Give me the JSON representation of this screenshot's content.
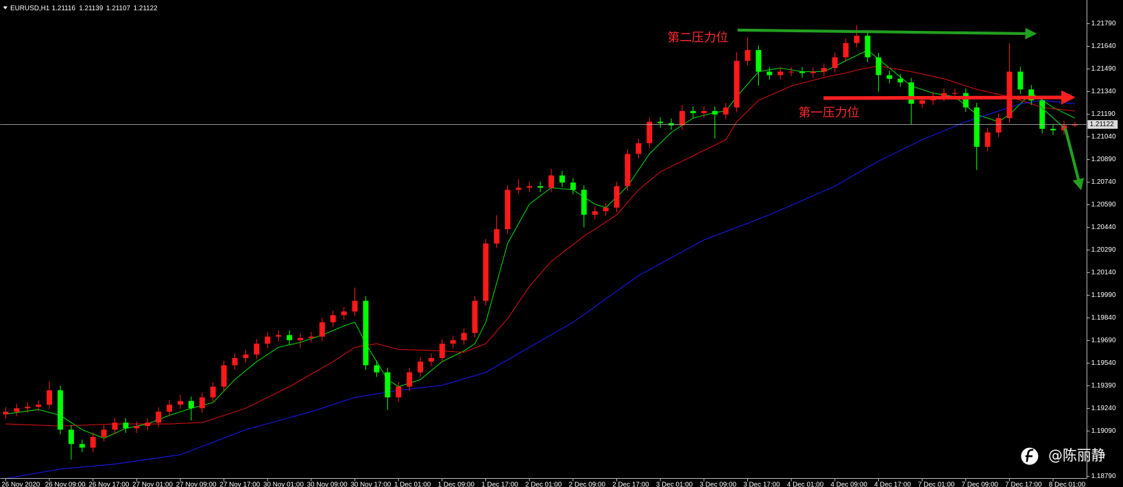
{
  "chart_data": {
    "type": "candlestick",
    "symbol": "EURUSD,H1",
    "header_values": [
      1.21116,
      1.21139,
      1.21107,
      1.21122
    ],
    "current_price": 1.21122,
    "up_color": "#ff1a1a",
    "down_color": "#00ff00",
    "open": [
      1.192,
      1.19218,
      1.19241,
      1.19251,
      1.19265,
      1.1936,
      1.19099,
      1.19004,
      1.1898,
      1.19051,
      1.19099,
      1.19146,
      1.19108,
      1.19123,
      1.19146,
      1.19218,
      1.19265,
      1.19289,
      1.19241,
      1.19313,
      1.19384,
      1.19526,
      1.19574,
      1.19597,
      1.19669,
      1.19716,
      1.19726,
      1.19692,
      1.19707,
      1.19716,
      1.19811,
      1.19858,
      1.19882,
      1.19953,
      1.19526,
      1.19479,
      1.19313,
      1.19384,
      1.19479,
      1.1955,
      1.19574,
      1.19669,
      1.19692,
      1.1974,
      1.19953,
      1.20333,
      1.20428,
      1.20689,
      1.20703,
      1.20713,
      1.20703,
      1.20784,
      1.20737,
      1.20689,
      1.20523,
      1.20547,
      1.20571,
      1.20713,
      1.20927,
      1.20998,
      1.2114,
      1.21131,
      1.21116,
      1.21211,
      1.21197,
      1.21211,
      1.21188,
      1.21235,
      1.21544,
      1.21615,
      1.21472,
      1.21449,
      1.21472,
      1.21472,
      1.21463,
      1.21472,
      1.21496,
      1.21567,
      1.21662,
      1.2171,
      1.21567,
      1.21449,
      1.21425,
      1.21401,
      1.21259,
      1.21282,
      1.21306,
      1.2133,
      1.2133,
      1.21235,
      1.20974,
      1.21069,
      1.21164,
      1.21472,
      1.21354,
      1.21282,
      1.21093,
      1.21083,
      1.21116
    ],
    "high": [
      1.19248,
      1.19271,
      1.19281,
      1.19295,
      1.1942,
      1.1939,
      1.19129,
      1.19034,
      1.19081,
      1.19129,
      1.19176,
      1.19176,
      1.19153,
      1.19176,
      1.19248,
      1.19295,
      1.1933,
      1.19319,
      1.19343,
      1.19414,
      1.19556,
      1.19604,
      1.19627,
      1.19699,
      1.19746,
      1.19756,
      1.19756,
      1.19737,
      1.19746,
      1.19841,
      1.19888,
      1.19912,
      1.2004,
      1.19983,
      1.19556,
      1.19509,
      1.19414,
      1.19509,
      1.1958,
      1.19604,
      1.19699,
      1.19722,
      1.1977,
      1.19983,
      1.20363,
      1.2052,
      1.20719,
      1.2076,
      1.20743,
      1.20743,
      1.2083,
      1.20814,
      1.20767,
      1.20719,
      1.20577,
      1.20601,
      1.20743,
      1.20957,
      1.21028,
      1.2117,
      1.2117,
      1.21161,
      1.2125,
      1.21241,
      1.21241,
      1.21241,
      1.21265,
      1.216,
      1.217,
      1.21645,
      1.21502,
      1.21502,
      1.21502,
      1.21502,
      1.21502,
      1.21526,
      1.21597,
      1.21692,
      1.2178,
      1.2174,
      1.21597,
      1.21479,
      1.21455,
      1.21431,
      1.21312,
      1.21336,
      1.2136,
      1.2136,
      1.2136,
      1.21265,
      1.21099,
      1.21194,
      1.2166,
      1.21502,
      1.21384,
      1.21312,
      1.21123,
      1.21146,
      1.21139
    ],
    "low": [
      1.1917,
      1.19188,
      1.19211,
      1.19221,
      1.19235,
      1.19069,
      1.189,
      1.1895,
      1.1895,
      1.19021,
      1.19069,
      1.19078,
      1.19078,
      1.19093,
      1.19116,
      1.19188,
      1.19235,
      1.1916,
      1.19211,
      1.19283,
      1.19354,
      1.19496,
      1.19544,
      1.19567,
      1.19639,
      1.19686,
      1.19662,
      1.1964,
      1.19677,
      1.19686,
      1.19781,
      1.19828,
      1.19852,
      1.19496,
      1.19449,
      1.1923,
      1.19283,
      1.19354,
      1.19449,
      1.1952,
      1.19544,
      1.19639,
      1.19662,
      1.1971,
      1.19923,
      1.20303,
      1.20398,
      1.20659,
      1.20673,
      1.20673,
      1.20673,
      1.20707,
      1.20659,
      1.2044,
      1.20493,
      1.20517,
      1.20541,
      1.20683,
      1.20897,
      1.20968,
      1.21101,
      1.21086,
      1.21086,
      1.21167,
      1.21167,
      1.2103,
      1.21158,
      1.21205,
      1.21514,
      1.2138,
      1.21419,
      1.21419,
      1.21442,
      1.21433,
      1.21433,
      1.21442,
      1.21466,
      1.21537,
      1.21632,
      1.21537,
      1.2134,
      1.21395,
      1.21371,
      1.2112,
      1.21229,
      1.21252,
      1.21276,
      1.213,
      1.21205,
      1.2082,
      1.20944,
      1.21039,
      1.21134,
      1.21324,
      1.21252,
      1.21063,
      1.21053,
      1.21053,
      1.21107
    ],
    "close": [
      1.19218,
      1.19241,
      1.19251,
      1.19265,
      1.1936,
      1.19099,
      1.19004,
      1.1898,
      1.19051,
      1.19099,
      1.19146,
      1.19108,
      1.19123,
      1.19146,
      1.19218,
      1.19265,
      1.19289,
      1.19241,
      1.19313,
      1.19384,
      1.19526,
      1.19574,
      1.19597,
      1.19669,
      1.19716,
      1.19726,
      1.19692,
      1.19707,
      1.19716,
      1.19811,
      1.19858,
      1.19882,
      1.19953,
      1.19526,
      1.19479,
      1.19313,
      1.19384,
      1.19479,
      1.1955,
      1.19574,
      1.19669,
      1.19692,
      1.1974,
      1.19953,
      1.20333,
      1.20428,
      1.20689,
      1.20703,
      1.20713,
      1.20703,
      1.20784,
      1.20737,
      1.20689,
      1.20523,
      1.20547,
      1.20571,
      1.20713,
      1.20927,
      1.20998,
      1.2114,
      1.21131,
      1.21116,
      1.21211,
      1.21197,
      1.21211,
      1.21188,
      1.21235,
      1.21544,
      1.21615,
      1.21472,
      1.21449,
      1.21472,
      1.21472,
      1.21463,
      1.21472,
      1.21496,
      1.21567,
      1.21662,
      1.2171,
      1.21567,
      1.21449,
      1.21425,
      1.21401,
      1.21259,
      1.21282,
      1.21306,
      1.2133,
      1.2133,
      1.21235,
      1.20974,
      1.21069,
      1.21164,
      1.21472,
      1.21354,
      1.21282,
      1.21093,
      1.21083,
      1.21116,
      1.21122
    ],
    "lines": [
      {
        "color": "#00e000",
        "x": [
          0,
          3,
          5,
          7,
          9,
          11,
          13,
          15,
          17,
          19,
          21,
          23,
          25,
          27,
          29,
          31,
          32,
          33,
          35,
          36,
          38,
          40,
          42,
          43,
          44,
          46,
          48,
          50,
          52,
          54,
          55,
          57,
          59,
          61,
          63,
          65,
          66,
          67,
          69,
          71,
          73,
          75,
          77,
          79,
          81,
          83,
          85,
          87,
          89,
          91,
          92,
          94,
          96,
          98
        ],
        "values": [
          1.19203,
          1.19232,
          1.19194,
          1.19099,
          1.19042,
          1.19108,
          1.19137,
          1.19194,
          1.19241,
          1.19279,
          1.19431,
          1.1955,
          1.19645,
          1.19678,
          1.19726,
          1.19787,
          1.19811,
          1.19669,
          1.19431,
          1.19384,
          1.19431,
          1.1955,
          1.19621,
          1.19669,
          1.19811,
          1.20333,
          1.20594,
          1.20703,
          1.20689,
          1.20594,
          1.20571,
          1.20713,
          1.20927,
          1.21069,
          1.21164,
          1.21202,
          1.21211,
          1.21306,
          1.21472,
          1.21496,
          1.21472,
          1.21472,
          1.21544,
          1.21615,
          1.21496,
          1.21377,
          1.2133,
          1.21306,
          1.21188,
          1.2114,
          1.21188,
          1.2133,
          1.21235,
          1.21164
        ]
      },
      {
        "color": "#e01010",
        "x": [
          0,
          5,
          10,
          15,
          18,
          22,
          26,
          30,
          32,
          34,
          36,
          40,
          42,
          44,
          46,
          48,
          50,
          53,
          56,
          58,
          60,
          62,
          64,
          66,
          67,
          69,
          72,
          75,
          77,
          78,
          80,
          83,
          86,
          89,
          92,
          95,
          98
        ],
        "values": [
          1.19137,
          1.19123,
          1.19137,
          1.19137,
          1.19146,
          1.19241,
          1.19384,
          1.1955,
          1.19645,
          1.19669,
          1.19631,
          1.19621,
          1.19612,
          1.19669,
          1.19835,
          1.20048,
          1.20215,
          1.20381,
          1.20523,
          1.20689,
          1.20808,
          1.20879,
          1.2095,
          1.21021,
          1.2114,
          1.21282,
          1.21377,
          1.21434,
          1.21463,
          1.21482,
          1.2151,
          1.21472,
          1.21425,
          1.21354,
          1.21306,
          1.21235,
          1.21211
        ]
      },
      {
        "color": "#1a1aff",
        "x": [
          0,
          5,
          10,
          16,
          22,
          28,
          32,
          36,
          40,
          44,
          48,
          52,
          58,
          64,
          70,
          76,
          80,
          84,
          88,
          91,
          93,
          95,
          98
        ],
        "values": [
          1.18776,
          1.18838,
          1.18871,
          1.18933,
          1.19099,
          1.19218,
          1.19313,
          1.1936,
          1.19393,
          1.19479,
          1.19645,
          1.19811,
          1.2012,
          1.20357,
          1.20523,
          1.20713,
          1.20879,
          1.21021,
          1.2114,
          1.21211,
          1.21259,
          1.21282,
          1.21259
        ]
      }
    ],
    "xlim": [
      -0.5,
      99.1
    ],
    "ylim": [
      1.18776,
      1.21947
    ],
    "yticks": [
      {
        "value": 1.2179,
        "label": "1.21790"
      },
      {
        "value": 1.2164,
        "label": "1.21640"
      },
      {
        "value": 1.2149,
        "label": "1.21490"
      },
      {
        "value": 1.2134,
        "label": "1.21340"
      },
      {
        "value": 1.2119,
        "label": "1.21190"
      },
      {
        "value": 1.2104,
        "label": "1.21040"
      },
      {
        "value": 1.2089,
        "label": "1.20890"
      },
      {
        "value": 1.2074,
        "label": "1.20740"
      },
      {
        "value": 1.2059,
        "label": "1.20590"
      },
      {
        "value": 1.2044,
        "label": "1.20440"
      },
      {
        "value": 1.2029,
        "label": "1.20290"
      },
      {
        "value": 1.2014,
        "label": "1.20140"
      },
      {
        "value": 1.1999,
        "label": "1.19990"
      },
      {
        "value": 1.1984,
        "label": "1.19840"
      },
      {
        "value": 1.1969,
        "label": "1.19690"
      },
      {
        "value": 1.1954,
        "label": "1.19540"
      },
      {
        "value": 1.1939,
        "label": "1.19390"
      },
      {
        "value": 1.1924,
        "label": "1.19240"
      },
      {
        "value": 1.1909,
        "label": "1.19090"
      },
      {
        "value": 1.1879,
        "label": "1.18790"
      }
    ],
    "xticks": [
      {
        "value": 0,
        "label": "26 Nov 2020"
      },
      {
        "value": 4,
        "label": "26 Nov 09:00"
      },
      {
        "value": 8,
        "label": "26 Nov 17:00"
      },
      {
        "value": 12,
        "label": "27 Nov 01:00"
      },
      {
        "value": 16,
        "label": "27 Nov 09:00"
      },
      {
        "value": 20,
        "label": "27 Nov 17:00"
      },
      {
        "value": 24,
        "label": "30 Nov 01:00"
      },
      {
        "value": 28,
        "label": "30 Nov 09:00"
      },
      {
        "value": 32,
        "label": "30 Nov 17:00"
      },
      {
        "value": 36,
        "label": "1 Dec 01:00"
      },
      {
        "value": 40,
        "label": "1 Dec 09:00"
      },
      {
        "value": 44,
        "label": "1 Dec 17:00"
      },
      {
        "value": 48,
        "label": "2 Dec 01:00"
      },
      {
        "value": 52,
        "label": "2 Dec 09:00"
      },
      {
        "value": 56,
        "label": "2 Dec 17:00"
      },
      {
        "value": 60,
        "label": "3 Dec 01:00"
      },
      {
        "value": 64,
        "label": "3 Dec 09:00"
      },
      {
        "value": 68,
        "label": "3 Dec 17:00"
      },
      {
        "value": 72,
        "label": "4 Dec 01:00"
      },
      {
        "value": 76,
        "label": "4 Dec 09:00"
      },
      {
        "value": 80,
        "label": "4 Dec 17:00"
      },
      {
        "value": 84,
        "label": "7 Dec 01:00"
      },
      {
        "value": 88,
        "label": "7 Dec 09:00"
      },
      {
        "value": 92,
        "label": "7 Dec 17:00"
      },
      {
        "value": 96,
        "label": "8 Dec 01:00"
      }
    ],
    "annotations": [
      "第二压力位",
      "第一压力位"
    ],
    "watermark": "@陈丽静"
  }
}
